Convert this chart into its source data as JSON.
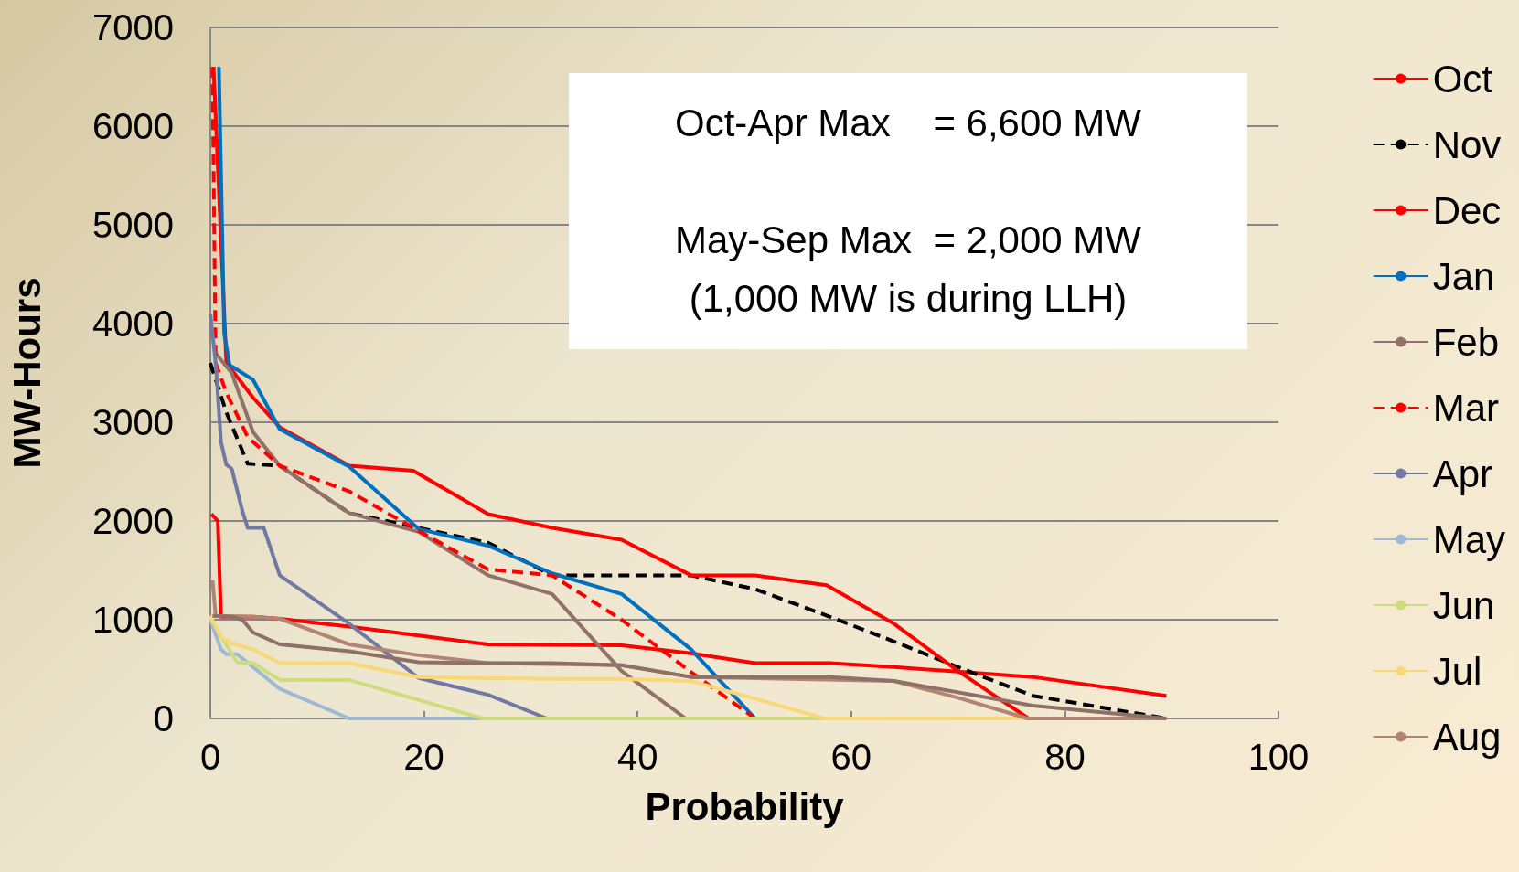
{
  "chart_data": {
    "type": "line",
    "xlabel": "Probability",
    "ylabel": "MW-Hours",
    "xlim": [
      0,
      100
    ],
    "xticks": [
      0,
      20,
      40,
      60,
      80,
      100
    ],
    "ylim": [
      0,
      7000
    ],
    "yticks": [
      0,
      1000,
      2000,
      3000,
      4000,
      5000,
      6000,
      7000
    ],
    "grid": "y",
    "legend": "right",
    "marker": "none",
    "annotations": [
      "Oct-Apr Max    = 6,600 MW",
      "May-Sep Max  = 2,000 MW",
      "(1,000 MW is during LLH)"
    ],
    "series": [
      {
        "name": "Oct",
        "color": "#ff0000",
        "x": [
          0.1,
          0.7,
          1,
          4,
          6.5,
          13,
          19.5,
          26,
          38.5,
          45,
          51,
          58,
          64,
          77,
          89.5
        ],
        "values": [
          2070,
          2000,
          1030,
          1030,
          1010,
          930,
          840,
          750,
          740,
          660,
          560,
          560,
          520,
          420,
          230
        ]
      },
      {
        "name": "Nov",
        "color": "#000000",
        "line_style": "dashed",
        "x": [
          0,
          1.5,
          3.5,
          6.5,
          13,
          19.5,
          26,
          32,
          45,
          51,
          58,
          64,
          70,
          77,
          89.5
        ],
        "values": [
          3600,
          3100,
          2580,
          2560,
          2080,
          1930,
          1780,
          1450,
          1450,
          1310,
          1030,
          780,
          520,
          230,
          0
        ]
      },
      {
        "name": "Dec",
        "color": "#ff0000",
        "x": [
          0.3,
          1.5,
          4,
          6.5,
          13,
          19,
          26,
          32,
          38.5,
          45,
          51,
          57.7,
          64,
          70,
          76.6
        ],
        "values": [
          6600,
          3600,
          3250,
          2950,
          2560,
          2510,
          2070,
          1930,
          1810,
          1450,
          1450,
          1350,
          960,
          480,
          0
        ]
      },
      {
        "name": "Jan",
        "color": "#0070c0",
        "x": [
          0.8,
          1.3,
          1.8,
          4,
          6.5,
          13,
          19.5,
          26,
          32,
          38.5,
          45,
          51
        ],
        "values": [
          6600,
          3900,
          3580,
          3430,
          2930,
          2550,
          1920,
          1750,
          1470,
          1260,
          700,
          0
        ]
      },
      {
        "name": "Feb",
        "color": "#93716a",
        "x": [
          0.5,
          2,
          4,
          6.5,
          13,
          19.5,
          26,
          32,
          38.5,
          44.5
        ],
        "values": [
          3700,
          3500,
          2900,
          2560,
          2080,
          1890,
          1450,
          1260,
          480,
          0
        ]
      },
      {
        "name": "Mar",
        "color": "#ff0000",
        "line_style": "dashed",
        "x": [
          0.2,
          0.5,
          1.5,
          3.5,
          6.5,
          13,
          19.5,
          26,
          32,
          38.5,
          45,
          51
        ],
        "values": [
          6600,
          3600,
          3300,
          2850,
          2560,
          2300,
          1900,
          1510,
          1450,
          1000,
          470,
          0
        ]
      },
      {
        "name": "Apr",
        "color": "#7079a3",
        "x": [
          0,
          0.5,
          1,
          1.5,
          2,
          3,
          3.5,
          5,
          6.5,
          13,
          19.5,
          26,
          31.5
        ],
        "values": [
          4100,
          3600,
          2800,
          2570,
          2530,
          2100,
          1930,
          1930,
          1450,
          960,
          410,
          240,
          0
        ]
      },
      {
        "name": "May",
        "color": "#9db9d3",
        "x": [
          0,
          1,
          1.5,
          2.5,
          6.5,
          13,
          31
        ],
        "values": [
          1000,
          700,
          650,
          650,
          300,
          0,
          0
        ]
      },
      {
        "name": "Jun",
        "color": "#cfdc7c",
        "x": [
          0,
          1,
          2.5,
          4,
          6.5,
          13,
          25.5,
          57.5
        ],
        "values": [
          1020,
          830,
          570,
          560,
          390,
          390,
          0,
          0
        ]
      },
      {
        "name": "Jul",
        "color": "#f9d878",
        "x": [
          0,
          1,
          2,
          4,
          6.5,
          13,
          19.5,
          32,
          38.5,
          45,
          51,
          57.5,
          89.5
        ],
        "values": [
          1040,
          820,
          760,
          700,
          560,
          560,
          420,
          400,
          400,
          380,
          200,
          0,
          0
        ]
      },
      {
        "name": "Aug",
        "color": "#b28473",
        "x": [
          0.2,
          0.5,
          4,
          6.5,
          13,
          19.5,
          26,
          38.5,
          45,
          64,
          70,
          76.5,
          89.5
        ],
        "values": [
          1400,
          1040,
          1030,
          1010,
          750,
          640,
          560,
          540,
          420,
          380,
          210,
          0,
          0
        ]
      },
      {
        "color": "#8d7166",
        "x": [
          0.2,
          2,
          3,
          4,
          6.5,
          13,
          19.5,
          26,
          32,
          38.5,
          45,
          51,
          58,
          64,
          77,
          89.5
        ],
        "values": [
          1040,
          1030,
          1000,
          870,
          750,
          680,
          570,
          560,
          560,
          540,
          420,
          420,
          420,
          380,
          130,
          0
        ]
      }
    ]
  }
}
